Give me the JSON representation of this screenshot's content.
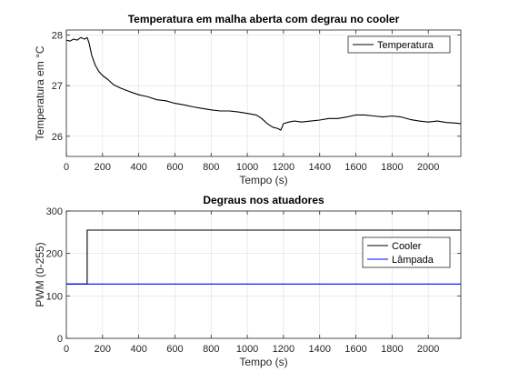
{
  "chart_data": [
    {
      "type": "line",
      "title": "Temperatura em malha aberta com degrau no cooler",
      "xlabel": "Tempo (s)",
      "ylabel": "Temperatura em °C",
      "xlim": [
        0,
        2180
      ],
      "ylim": [
        25.6,
        28.1
      ],
      "xticks": [
        0,
        200,
        400,
        600,
        800,
        1000,
        1200,
        1400,
        1600,
        1800,
        2000
      ],
      "yticks": [
        26,
        27,
        28
      ],
      "grid": true,
      "legend": "top-right",
      "series": [
        {
          "name": "Temperatura",
          "color": "#000000",
          "x": [
            0,
            20,
            40,
            60,
            80,
            100,
            115,
            125,
            140,
            160,
            180,
            200,
            230,
            260,
            300,
            350,
            400,
            450,
            500,
            550,
            600,
            650,
            700,
            750,
            800,
            850,
            900,
            950,
            1000,
            1050,
            1080,
            1110,
            1140,
            1170,
            1185,
            1200,
            1230,
            1260,
            1300,
            1350,
            1400,
            1450,
            1500,
            1550,
            1600,
            1650,
            1700,
            1750,
            1800,
            1850,
            1900,
            1950,
            2000,
            2050,
            2100,
            2150,
            2180
          ],
          "y": [
            27.9,
            27.88,
            27.92,
            27.9,
            27.95,
            27.92,
            27.95,
            27.85,
            27.6,
            27.4,
            27.28,
            27.2,
            27.12,
            27.02,
            26.95,
            26.88,
            26.82,
            26.78,
            26.72,
            26.7,
            26.65,
            26.62,
            26.58,
            26.55,
            26.52,
            26.5,
            26.5,
            26.48,
            26.45,
            26.42,
            26.35,
            26.25,
            26.18,
            26.15,
            26.12,
            26.25,
            26.28,
            26.3,
            26.28,
            26.3,
            26.32,
            26.35,
            26.35,
            26.38,
            26.42,
            26.42,
            26.4,
            26.38,
            26.4,
            26.38,
            26.33,
            26.3,
            26.28,
            26.3,
            26.27,
            26.26,
            26.25
          ]
        }
      ]
    },
    {
      "type": "line",
      "title": "Degraus nos atuadores",
      "xlabel": "Tempo (s)",
      "ylabel": "PWM (0-255)",
      "xlim": [
        0,
        2180
      ],
      "ylim": [
        0,
        300
      ],
      "xticks": [
        0,
        200,
        400,
        600,
        800,
        1000,
        1200,
        1400,
        1600,
        1800,
        2000
      ],
      "yticks": [
        0,
        100,
        200,
        300
      ],
      "grid": true,
      "legend": "right",
      "series": [
        {
          "name": "Cooler",
          "color": "#000000",
          "x": [
            0,
            115,
            115,
            2180
          ],
          "y": [
            128,
            128,
            255,
            255
          ]
        },
        {
          "name": "Lâmpada",
          "color": "#0000ff",
          "x": [
            0,
            2180
          ],
          "y": [
            128,
            128
          ]
        }
      ]
    }
  ]
}
